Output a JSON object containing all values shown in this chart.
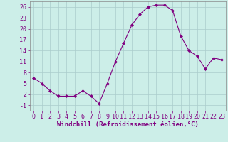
{
  "x": [
    0,
    1,
    2,
    3,
    4,
    5,
    6,
    7,
    8,
    9,
    10,
    11,
    12,
    13,
    14,
    15,
    16,
    17,
    18,
    19,
    20,
    21,
    22,
    23
  ],
  "y": [
    6.5,
    5.0,
    3.0,
    1.5,
    1.5,
    1.5,
    3.0,
    1.5,
    -0.5,
    5.0,
    11.0,
    16.0,
    21.0,
    24.0,
    26.0,
    26.5,
    26.5,
    25.0,
    18.0,
    14.0,
    12.5,
    9.0,
    12.0,
    11.5
  ],
  "line_color": "#800080",
  "marker": "D",
  "marker_size": 2.0,
  "background_color": "#cceee8",
  "grid_color": "#aacccc",
  "xlabel": "Windchill (Refroidissement éolien,°C)",
  "xlabel_color": "#800080",
  "xlabel_fontsize": 6.5,
  "ylabel_ticks": [
    -1,
    2,
    5,
    8,
    11,
    14,
    17,
    20,
    23,
    26
  ],
  "ylim": [
    -2.5,
    27.5
  ],
  "xlim": [
    -0.5,
    23.5
  ],
  "tick_fontsize": 6.0,
  "tick_color": "#800080"
}
